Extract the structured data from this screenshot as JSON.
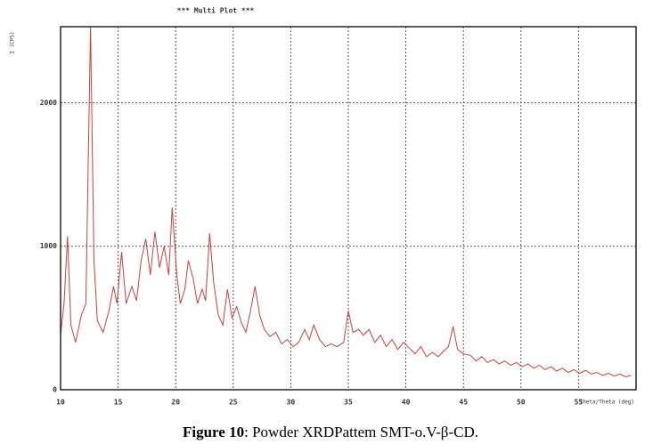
{
  "chart_data": {
    "type": "line",
    "title": "***   Multi Plot   ***",
    "y_label": "I (CPS)",
    "x_label": "Theta/Theta (deg)",
    "x": [
      10,
      10.3,
      10.6,
      10.9,
      11.3,
      11.8,
      12.2,
      12.6,
      12.9,
      13.2,
      13.7,
      14.2,
      14.6,
      14.9,
      15.3,
      15.7,
      16.2,
      16.6,
      17.0,
      17.4,
      17.8,
      18.2,
      18.6,
      19.0,
      19.4,
      19.7,
      20.1,
      20.4,
      20.8,
      21.1,
      21.5,
      21.9,
      22.3,
      22.6,
      22.95,
      23.3,
      23.7,
      24.1,
      24.5,
      24.9,
      25.3,
      25.7,
      26.1,
      26.5,
      26.9,
      27.3,
      27.7,
      28.2,
      28.7,
      29.2,
      29.7,
      30.2,
      30.7,
      31.2,
      31.6,
      32.0,
      32.5,
      33.0,
      33.5,
      34.0,
      34.6,
      35.0,
      35.4,
      35.9,
      36.3,
      36.8,
      37.3,
      37.8,
      38.3,
      38.8,
      39.3,
      39.8,
      40.3,
      40.8,
      41.3,
      41.8,
      42.3,
      42.8,
      43.3,
      43.7,
      44.1,
      44.5,
      45.0,
      45.6,
      46.1,
      46.6,
      47.1,
      47.6,
      48.1,
      48.6,
      49.1,
      49.6,
      50.1,
      50.6,
      51.1,
      51.6,
      52.1,
      52.6,
      53.1,
      53.6,
      54.1,
      54.6,
      55.1,
      55.6,
      56.1,
      56.6,
      57.1,
      57.6,
      58.1,
      58.6,
      59.1,
      59.6
    ],
    "values": [
      380,
      600,
      1070,
      450,
      330,
      520,
      600,
      2530,
      900,
      480,
      400,
      550,
      720,
      600,
      960,
      600,
      720,
      620,
      900,
      1050,
      800,
      1100,
      850,
      1000,
      800,
      1270,
      800,
      600,
      700,
      900,
      780,
      600,
      700,
      620,
      1090,
      750,
      520,
      450,
      700,
      500,
      580,
      470,
      400,
      550,
      720,
      520,
      420,
      370,
      400,
      320,
      350,
      300,
      330,
      420,
      350,
      450,
      350,
      300,
      320,
      300,
      330,
      550,
      400,
      420,
      380,
      420,
      330,
      380,
      300,
      350,
      280,
      330,
      290,
      250,
      300,
      230,
      260,
      230,
      270,
      300,
      440,
      280,
      250,
      240,
      200,
      230,
      190,
      210,
      180,
      200,
      170,
      190,
      160,
      180,
      150,
      170,
      140,
      160,
      130,
      150,
      120,
      140,
      115,
      135,
      110,
      120,
      100,
      115,
      95,
      110,
      90,
      100
    ],
    "color": "#c8403a",
    "xlim": [
      10,
      60
    ],
    "ylim": [
      0,
      2530
    ],
    "xticks": [
      10,
      15,
      20,
      25,
      30,
      35,
      40,
      45,
      50,
      55
    ],
    "yticks": [
      0,
      1000,
      2000
    ],
    "grid": true
  },
  "caption": {
    "label": "Figure 10",
    "text": ": Powder XRDPattem SMT-o.V-β-CD."
  }
}
